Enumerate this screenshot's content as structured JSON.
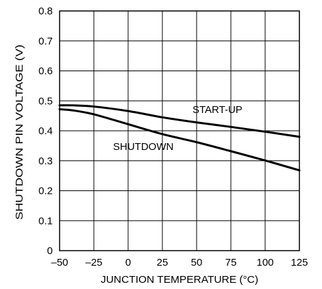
{
  "chart_data": {
    "type": "line",
    "title": "",
    "xlabel": "JUNCTION TEMPERATURE (°C)",
    "ylabel": "SHUTDOWN PIN VOLTAGE (V)",
    "xlim": [
      -50,
      125
    ],
    "ylim": [
      0,
      0.8
    ],
    "x_ticks": [
      -50,
      -25,
      0,
      25,
      50,
      75,
      100,
      125
    ],
    "x_tick_labels": [
      "–50",
      "–25",
      "0",
      "25",
      "50",
      "75",
      "100",
      "125"
    ],
    "y_ticks": [
      0,
      0.1,
      0.2,
      0.3,
      0.4,
      0.5,
      0.6,
      0.7,
      0.8
    ],
    "y_tick_labels": [
      "0",
      "0.1",
      "0.2",
      "0.3",
      "0.4",
      "0.5",
      "0.6",
      "0.7",
      "0.8"
    ],
    "grid": true,
    "series": [
      {
        "name": "START-UP",
        "x": [
          -50,
          -40,
          -25,
          0,
          25,
          50,
          75,
          100,
          125
        ],
        "values": [
          0.485,
          0.485,
          0.481,
          0.466,
          0.445,
          0.428,
          0.413,
          0.397,
          0.38
        ]
      },
      {
        "name": "SHUTDOWN",
        "x": [
          -50,
          -40,
          -25,
          0,
          25,
          50,
          75,
          100,
          125
        ],
        "values": [
          0.472,
          0.468,
          0.455,
          0.422,
          0.389,
          0.362,
          0.332,
          0.301,
          0.268
        ]
      }
    ],
    "colors": {
      "line": "#000000",
      "grid": "#000000",
      "background": "#ffffff"
    }
  }
}
